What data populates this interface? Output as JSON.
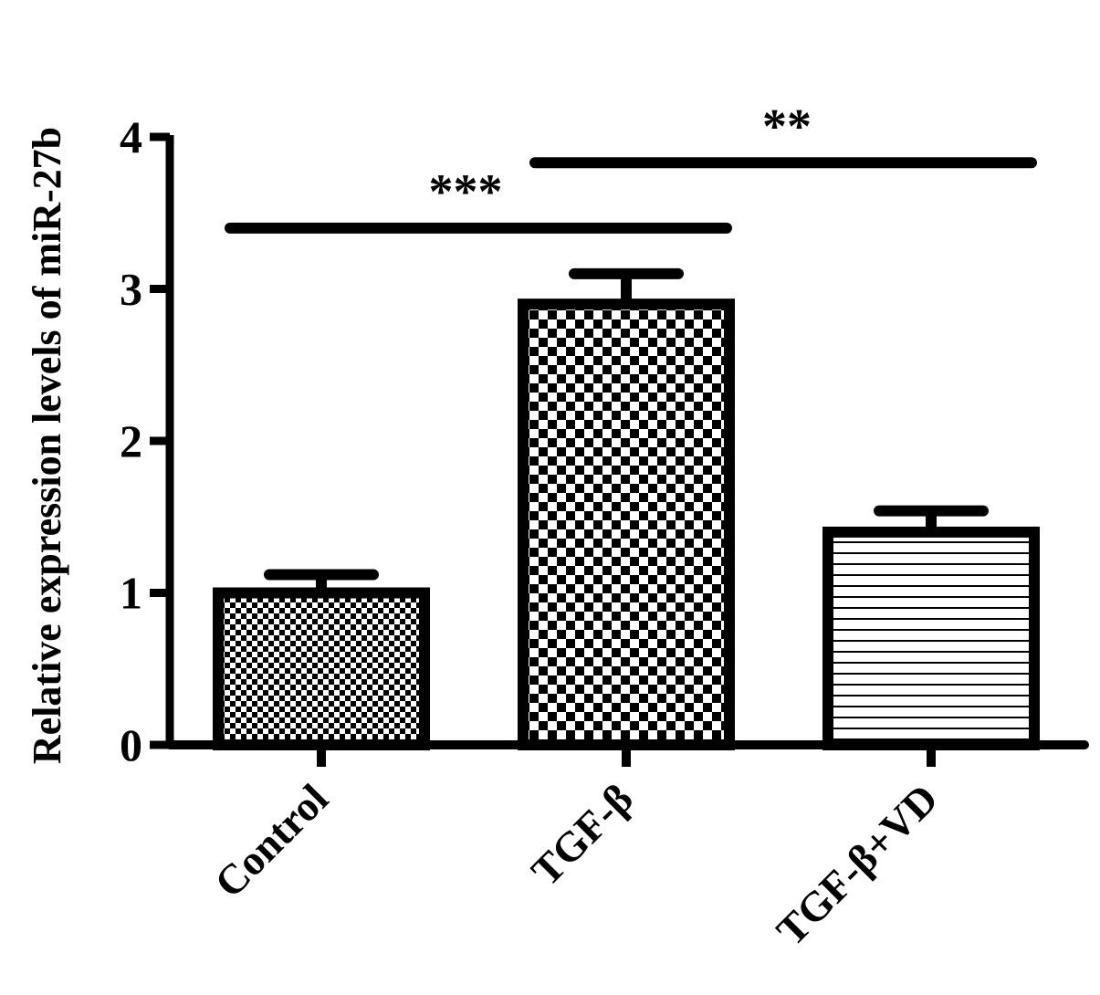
{
  "chart_data": {
    "type": "bar",
    "categories": [
      "Control",
      "TGF-β",
      "TGF-β+VD"
    ],
    "values": [
      1.0,
      2.9,
      1.4
    ],
    "errors": [
      0.12,
      0.2,
      0.14
    ],
    "patterns": [
      "fine-checker",
      "coarse-checker",
      "horizontal-lines"
    ],
    "ylabel": "Relative expression levels of miR-27b",
    "ylim": [
      0,
      4
    ],
    "yticks": [
      "0",
      "1",
      "2",
      "3",
      "4"
    ],
    "significance": [
      {
        "from": 0,
        "to": 1,
        "label": "***",
        "y": 3.4
      },
      {
        "from": 1,
        "to": 2,
        "label": "**",
        "y": 3.83
      }
    ],
    "grid": false
  }
}
